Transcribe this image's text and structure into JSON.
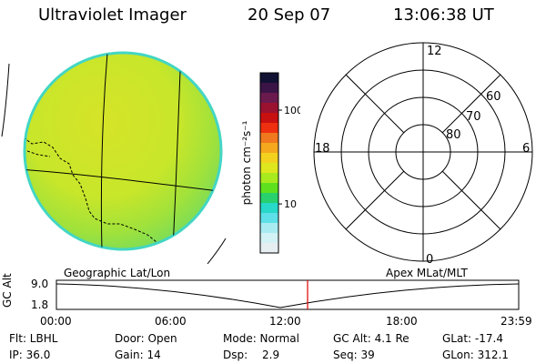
{
  "header": {
    "instrument": "Ultraviolet Imager",
    "date": "20 Sep 07",
    "time": "13:06:38 UT"
  },
  "colorbar": {
    "unit_label": "photon cm⁻²s⁻¹",
    "tick_labels": [
      "100",
      "10"
    ],
    "tick_values": [
      100,
      10
    ],
    "colors": [
      "#111133",
      "#3a1446",
      "#6b1a4e",
      "#9a1230",
      "#c81010",
      "#ee3010",
      "#f0781e",
      "#f5a81e",
      "#f2d21e",
      "#dee61e",
      "#a8ea1e",
      "#5ee01e",
      "#28d06e",
      "#28d8c8",
      "#5ee0e8",
      "#a8ecf2",
      "#d2f2f5",
      "#e6eef2"
    ],
    "min": 3,
    "max": 250
  },
  "polar_plot": {
    "mlt_labels": {
      "top": "12",
      "left": "18",
      "right": "6",
      "bottom": "0"
    },
    "lat_labels": [
      "60",
      "70",
      "80"
    ]
  },
  "panel_labels": {
    "left": "Geographic Lat/Lon",
    "right": "Apex MLat/MLT"
  },
  "altitude_plot": {
    "ylabel": "GC Alt",
    "y_ticks": [
      "9.0",
      "1.8"
    ],
    "x_ticks": [
      "00:00",
      "06:00",
      "12:00",
      "18:00",
      "23:59"
    ],
    "current_time_color": "#e00000"
  },
  "status": {
    "filter": "Flt: LBHL",
    "ip": "IP: 36.0",
    "door": "Door: Open",
    "gain": "Gain: 14",
    "mode": "Mode: Normal",
    "dsp_label": "Dsp:",
    "dsp_value": "2.9",
    "gc_alt": "GC Alt: 4.1 Re",
    "seq": "Seq: 39",
    "glat": "GLat: -17.4",
    "glon": "GLon: 312.1"
  },
  "colors": {
    "earth_fill": "#d4e628",
    "earth_edge": "#43d6c4"
  }
}
